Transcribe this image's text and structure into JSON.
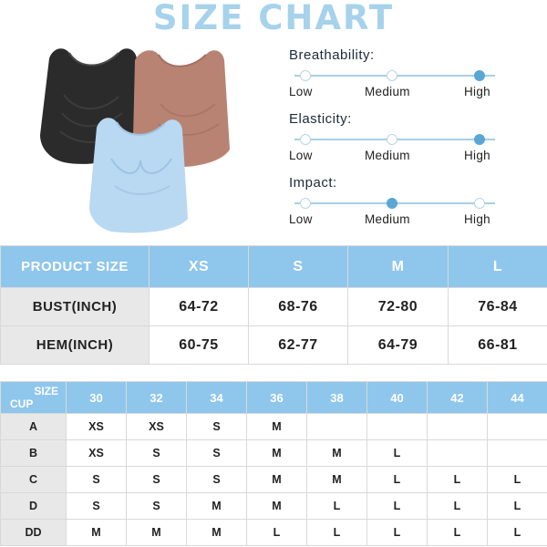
{
  "title": "SIZE CHART",
  "product_image": {
    "bras": [
      {
        "name": "black-bra",
        "color": "#2a2a2a"
      },
      {
        "name": "pink-bra",
        "color": "#b98373"
      },
      {
        "name": "blue-bra",
        "color": "#b9d8f2"
      }
    ]
  },
  "ratings": [
    {
      "label": "Breathability:",
      "levels": [
        "Low",
        "Medium",
        "High"
      ],
      "selected": 2
    },
    {
      "label": "Elasticity:",
      "levels": [
        "Low",
        "Medium",
        "High"
      ],
      "selected": 2
    },
    {
      "label": "Impact:",
      "levels": [
        "Low",
        "Medium",
        "High"
      ],
      "selected": 1
    }
  ],
  "size_table": {
    "headers": [
      "PRODUCT SIZE",
      "XS",
      "S",
      "M",
      "L"
    ],
    "rows": [
      {
        "label": "BUST(INCH)",
        "values": [
          "64-72",
          "68-76",
          "72-80",
          "76-84"
        ]
      },
      {
        "label": "HEM(INCH)",
        "values": [
          "60-75",
          "62-77",
          "64-79",
          "66-81"
        ]
      }
    ]
  },
  "cup_table": {
    "corner_top": "SIZE",
    "corner_bottom": "CUP",
    "band_sizes": [
      "30",
      "32",
      "34",
      "36",
      "38",
      "40",
      "42",
      "44"
    ],
    "rows": [
      {
        "cup": "A",
        "values": [
          "XS",
          "XS",
          "S",
          "M",
          "",
          "",
          "",
          ""
        ]
      },
      {
        "cup": "B",
        "values": [
          "XS",
          "S",
          "S",
          "M",
          "M",
          "L",
          "",
          ""
        ]
      },
      {
        "cup": "C",
        "values": [
          "S",
          "S",
          "S",
          "M",
          "M",
          "L",
          "L",
          "L"
        ]
      },
      {
        "cup": "D",
        "values": [
          "S",
          "S",
          "M",
          "M",
          "L",
          "L",
          "L",
          "L"
        ]
      },
      {
        "cup": "DD",
        "values": [
          "M",
          "M",
          "M",
          "L",
          "L",
          "L",
          "L",
          "L"
        ]
      }
    ]
  },
  "colors": {
    "title": "#a6d2ec",
    "header_blue": "#8fc6ec",
    "row_gray": "#e8e8e8",
    "active_dot": "#5aa7d6"
  }
}
